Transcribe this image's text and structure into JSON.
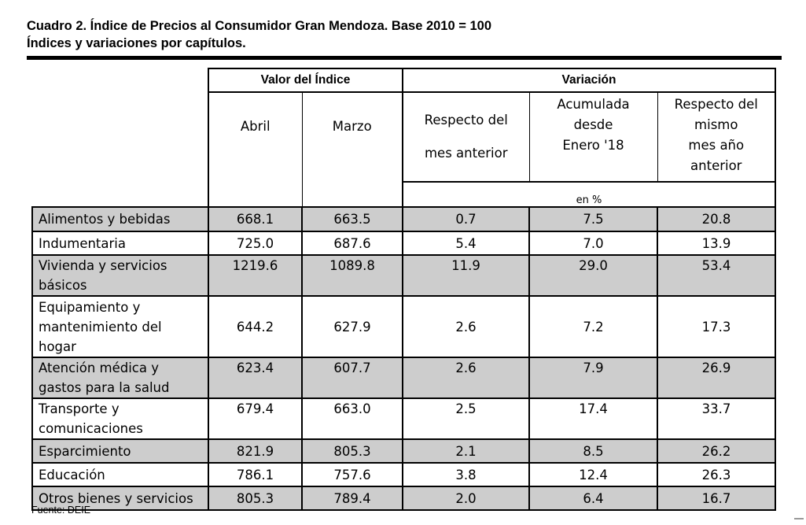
{
  "title": {
    "line1": "Cuadro 2.   Índice de Precios al Consumidor Gran Mendoza. Base 2010 = 100",
    "line2": "Índices y variaciones por capítulos."
  },
  "header": {
    "group_index": "Valor del Índice",
    "group_variation": "Variación",
    "col_abril": "Abril",
    "col_marzo": "Marzo",
    "col_mes_line1": "Respecto del",
    "col_mes_line2": "mes anterior",
    "col_acum_line1": "Acumulada",
    "col_acum_line2": "desde",
    "col_acum_line3": "Enero '18",
    "col_anual_line1": "Respecto del",
    "col_anual_line2": "mismo",
    "col_anual_line3": "mes año",
    "col_anual_line4": "anterior",
    "unit": "en %"
  },
  "rows": [
    {
      "label_1": "Alimentos y bebidas",
      "label_2": "",
      "label_3": "",
      "abril": "668.1",
      "marzo": "663.5",
      "mes": "0.7",
      "acum": "7.5",
      "anual": "20.8"
    },
    {
      "label_1": "Indumentaria",
      "label_2": "",
      "label_3": "",
      "abril": "725.0",
      "marzo": "687.6",
      "mes": "5.4",
      "acum": "7.0",
      "anual": "13.9"
    },
    {
      "label_1": "Vivienda y servicios",
      "label_2": "básicos",
      "label_3": "",
      "abril": "1219.6",
      "marzo": "1089.8",
      "mes": "11.9",
      "acum": "29.0",
      "anual": "53.4"
    },
    {
      "label_1": "Equipamiento y",
      "label_2": "mantenimiento del",
      "label_3": "hogar",
      "abril": "644.2",
      "marzo": "627.9",
      "mes": "2.6",
      "acum": "7.2",
      "anual": "17.3"
    },
    {
      "label_1": "Atención médica y",
      "label_2": "gastos para la salud",
      "label_3": "",
      "abril": "623.4",
      "marzo": "607.7",
      "mes": "2.6",
      "acum": "7.9",
      "anual": "26.9"
    },
    {
      "label_1": "Transporte y",
      "label_2": "comunicaciones",
      "label_3": "",
      "abril": "679.4",
      "marzo": "663.0",
      "mes": "2.5",
      "acum": "17.4",
      "anual": "33.7"
    },
    {
      "label_1": "Esparcimiento",
      "label_2": "",
      "label_3": "",
      "abril": "821.9",
      "marzo": "805.3",
      "mes": "2.1",
      "acum": "8.5",
      "anual": "26.2"
    },
    {
      "label_1": "Educación",
      "label_2": "",
      "label_3": "",
      "abril": "786.1",
      "marzo": "757.6",
      "mes": "3.8",
      "acum": "12.4",
      "anual": "26.3"
    },
    {
      "label_1": "Otros bienes y servicios",
      "label_2": "",
      "label_3": "",
      "abril": "805.3",
      "marzo": "789.4",
      "mes": "2.0",
      "acum": "6.4",
      "anual": "16.7"
    }
  ],
  "footer": "Fuente: DEIE",
  "colors": {
    "shaded_row": "#cdcdcd",
    "border": "#000000"
  }
}
